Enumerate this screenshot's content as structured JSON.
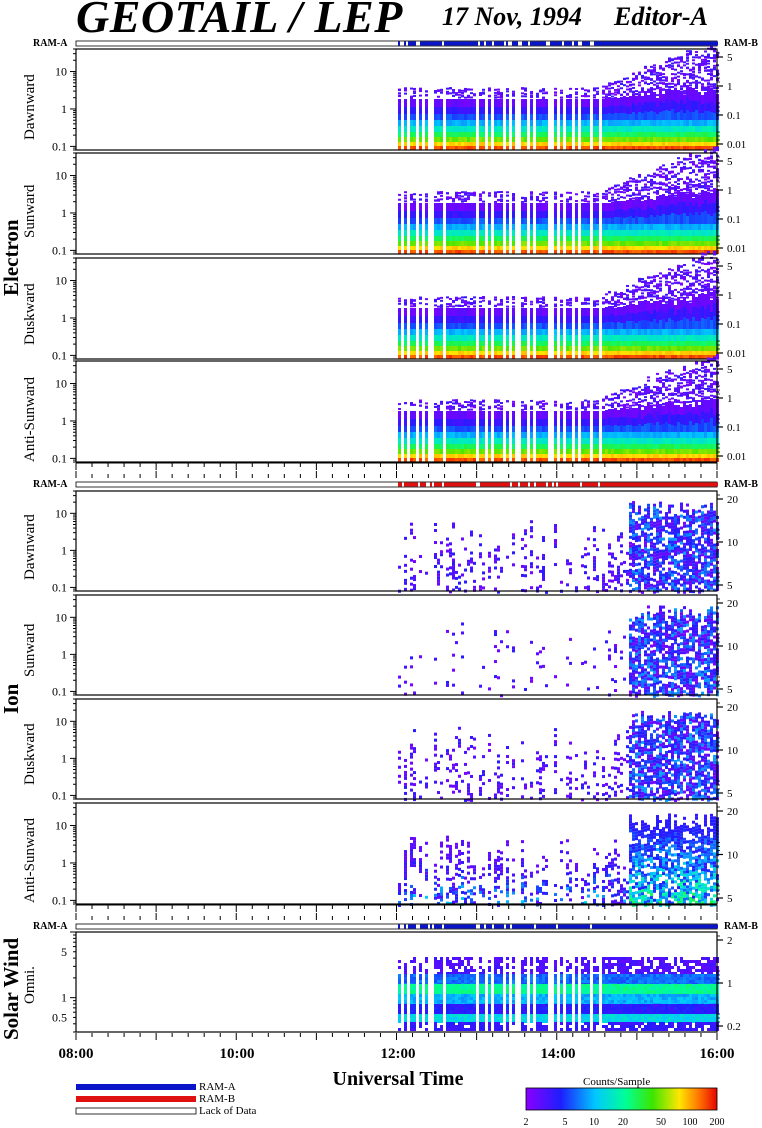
{
  "title": {
    "main": "GEOTAIL / LEP",
    "date": "17 Nov, 1994",
    "editor": "Editor-A"
  },
  "ram": {
    "a": "RAM-A",
    "b": "RAM-B"
  },
  "colors": {
    "ram_a": "#0a14c8",
    "ram_b": "#e01010",
    "lack": "#ffffff"
  },
  "groups": [
    {
      "name": "Electron",
      "panels": [
        "Dawnward",
        "Sunward",
        "Duskward",
        "Anti-Sunward"
      ]
    },
    {
      "name": "Ion",
      "panels": [
        "Dawnward",
        "Sunward",
        "Duskward",
        "Anti-Sunward"
      ]
    },
    {
      "name": "Solar Wind",
      "panels": [
        "Omni."
      ]
    }
  ],
  "x_axis": {
    "title": "Universal Time",
    "ticks": [
      "08:00",
      "10:00",
      "12:00",
      "14:00",
      "16:00"
    ]
  },
  "legend": {
    "items": [
      {
        "label": "RAM-A",
        "color": "#0a14c8"
      },
      {
        "label": "RAM-B",
        "color": "#e01010"
      },
      {
        "label": "Lack of Data",
        "color": "#ffffff"
      }
    ]
  },
  "colorbar": {
    "title": "Counts/Sample",
    "ticks": [
      "2",
      "5",
      "10",
      "20",
      "50",
      "100",
      "200"
    ],
    "range": [
      2,
      200
    ],
    "scale": "log"
  },
  "chart_data": [
    {
      "type": "heatmap",
      "group": "Electron",
      "panel": "Dawnward",
      "x_range": [
        "08:00",
        "16:00"
      ],
      "data_start": "12:00",
      "left_axis": {
        "ticks": [
          "0.1",
          "1",
          "10"
        ],
        "scale": "log",
        "range": [
          0.08,
          40
        ]
      },
      "right_axis": {
        "ticks": [
          "0.01",
          "0.1",
          "1",
          "5"
        ],
        "scale": "log"
      }
    },
    {
      "type": "heatmap",
      "group": "Electron",
      "panel": "Sunward",
      "x_range": [
        "08:00",
        "16:00"
      ],
      "data_start": "12:00",
      "left_axis": {
        "ticks": [
          "0.1",
          "1",
          "10"
        ],
        "scale": "log",
        "range": [
          0.08,
          40
        ]
      },
      "right_axis": {
        "ticks": [
          "0.01",
          "0.1",
          "1",
          "5"
        ],
        "scale": "log"
      }
    },
    {
      "type": "heatmap",
      "group": "Electron",
      "panel": "Duskward",
      "x_range": [
        "08:00",
        "16:00"
      ],
      "data_start": "12:00",
      "left_axis": {
        "ticks": [
          "0.1",
          "1",
          "10"
        ],
        "scale": "log",
        "range": [
          0.08,
          40
        ]
      },
      "right_axis": {
        "ticks": [
          "0.01",
          "0.1",
          "1",
          "5"
        ],
        "scale": "log"
      }
    },
    {
      "type": "heatmap",
      "group": "Electron",
      "panel": "Anti-Sunward",
      "x_range": [
        "08:00",
        "16:00"
      ],
      "data_start": "12:00",
      "left_axis": {
        "ticks": [
          "0.1",
          "1",
          "10"
        ],
        "scale": "log",
        "range": [
          0.08,
          40
        ]
      },
      "right_axis": {
        "ticks": [
          "0.01",
          "0.1",
          "1",
          "5"
        ],
        "scale": "log"
      }
    },
    {
      "type": "heatmap",
      "group": "Ion",
      "panel": "Dawnward",
      "x_range": [
        "08:00",
        "16:00"
      ],
      "data_start": "12:00",
      "left_axis": {
        "ticks": [
          "0.1",
          "1",
          "10"
        ],
        "scale": "log",
        "range": [
          0.08,
          40
        ]
      },
      "right_axis": {
        "ticks": [
          "5",
          "10",
          "20"
        ],
        "scale": "log"
      }
    },
    {
      "type": "heatmap",
      "group": "Ion",
      "panel": "Sunward",
      "x_range": [
        "08:00",
        "16:00"
      ],
      "data_start": "12:00",
      "left_axis": {
        "ticks": [
          "0.1",
          "1",
          "10"
        ],
        "scale": "log",
        "range": [
          0.08,
          40
        ]
      },
      "right_axis": {
        "ticks": [
          "5",
          "10",
          "20"
        ],
        "scale": "log"
      }
    },
    {
      "type": "heatmap",
      "group": "Ion",
      "panel": "Duskward",
      "x_range": [
        "08:00",
        "16:00"
      ],
      "data_start": "12:00",
      "left_axis": {
        "ticks": [
          "0.1",
          "1",
          "10"
        ],
        "scale": "log",
        "range": [
          0.08,
          40
        ]
      },
      "right_axis": {
        "ticks": [
          "5",
          "10",
          "20"
        ],
        "scale": "log"
      }
    },
    {
      "type": "heatmap",
      "group": "Ion",
      "panel": "Anti-Sunward",
      "x_range": [
        "08:00",
        "16:00"
      ],
      "data_start": "12:00",
      "left_axis": {
        "ticks": [
          "0.1",
          "1",
          "10"
        ],
        "scale": "log",
        "range": [
          0.08,
          40
        ]
      },
      "right_axis": {
        "ticks": [
          "5",
          "10",
          "20"
        ],
        "scale": "log"
      }
    },
    {
      "type": "heatmap",
      "group": "Solar Wind",
      "panel": "Omni.",
      "x_range": [
        "08:00",
        "16:00"
      ],
      "data_start": "12:00",
      "left_axis": {
        "ticks": [
          "0.5",
          "1",
          "5"
        ],
        "scale": "log",
        "range": [
          0.3,
          10
        ]
      },
      "right_axis": {
        "ticks": [
          "0.2",
          "1",
          "2"
        ],
        "scale": "log"
      }
    }
  ]
}
